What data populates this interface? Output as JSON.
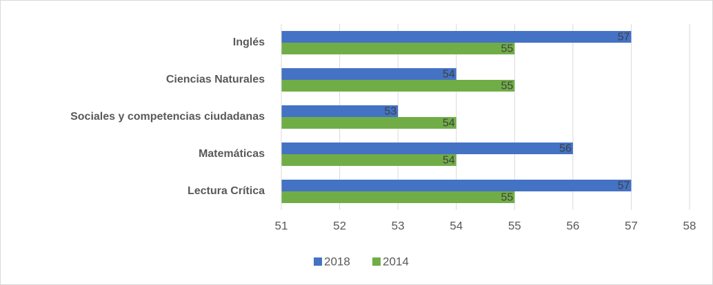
{
  "chart_data": {
    "type": "bar",
    "orientation": "horizontal",
    "categories": [
      "Inglés",
      "Ciencias Naturales",
      "Sociales y competencias ciudadanas",
      "Matemáticas",
      "Lectura Crítica"
    ],
    "series": [
      {
        "name": "2018",
        "color": "#4472c4",
        "values": [
          57,
          54,
          53,
          56,
          57
        ]
      },
      {
        "name": "2014",
        "color": "#70ad47",
        "values": [
          55,
          55,
          54,
          54,
          55
        ]
      }
    ],
    "xlim": [
      51,
      58
    ],
    "xticks": [
      51,
      52,
      53,
      54,
      55,
      56,
      57,
      58
    ],
    "grid": true,
    "legend": "bottom"
  }
}
